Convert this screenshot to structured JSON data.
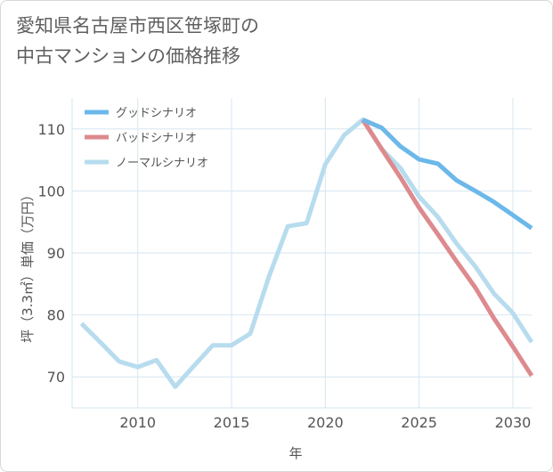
{
  "title": {
    "line1": "愛知県名古屋市西区笹塚町の",
    "line2": "中古マンションの価格推移"
  },
  "chart_data": {
    "type": "line",
    "title": "愛知県名古屋市西区笹塚町の中古マンションの価格推移",
    "xlabel": "年",
    "ylabel": "坪（3.3㎡）単価（万円）",
    "xlim": [
      2006.5,
      2031
    ],
    "ylim": [
      65,
      115
    ],
    "x_ticks": [
      2010,
      2015,
      2020,
      2025,
      2030
    ],
    "y_ticks": [
      70,
      80,
      90,
      100,
      110
    ],
    "grid": true,
    "legend_position": "top-left",
    "series": [
      {
        "name": "グッドシナリオ",
        "color": "#6cb8ea",
        "x": [
          2022,
          2023,
          2024,
          2025,
          2026,
          2027,
          2028,
          2029,
          2030,
          2031
        ],
        "values": [
          111.5,
          110.2,
          107.2,
          105.1,
          104.4,
          101.7,
          100.0,
          98.2,
          96.1,
          94.0
        ]
      },
      {
        "name": "バッドシナリオ",
        "color": "#dd8a8f",
        "x": [
          2022,
          2023,
          2024,
          2025,
          2026,
          2027,
          2028,
          2029,
          2030,
          2031
        ],
        "values": [
          111.5,
          106.8,
          102.2,
          97.3,
          93.0,
          88.6,
          84.4,
          79.4,
          74.9,
          70.2
        ]
      },
      {
        "name": "ノーマルシナリオ",
        "color": "#b7dcee",
        "x": [
          2007,
          2008,
          2009,
          2010,
          2011,
          2012,
          2013,
          2014,
          2015,
          2016,
          2017,
          2018,
          2019,
          2020,
          2021,
          2022,
          2023,
          2024,
          2025,
          2026,
          2027,
          2028,
          2029,
          2030,
          2031
        ],
        "values": [
          78.6,
          75.6,
          72.5,
          71.6,
          72.7,
          68.4,
          71.8,
          75.1,
          75.1,
          77.0,
          86.2,
          94.3,
          94.8,
          104.3,
          109.0,
          111.5,
          106.8,
          103.7,
          99.1,
          95.8,
          91.5,
          87.8,
          83.4,
          80.3,
          75.6
        ]
      }
    ]
  }
}
